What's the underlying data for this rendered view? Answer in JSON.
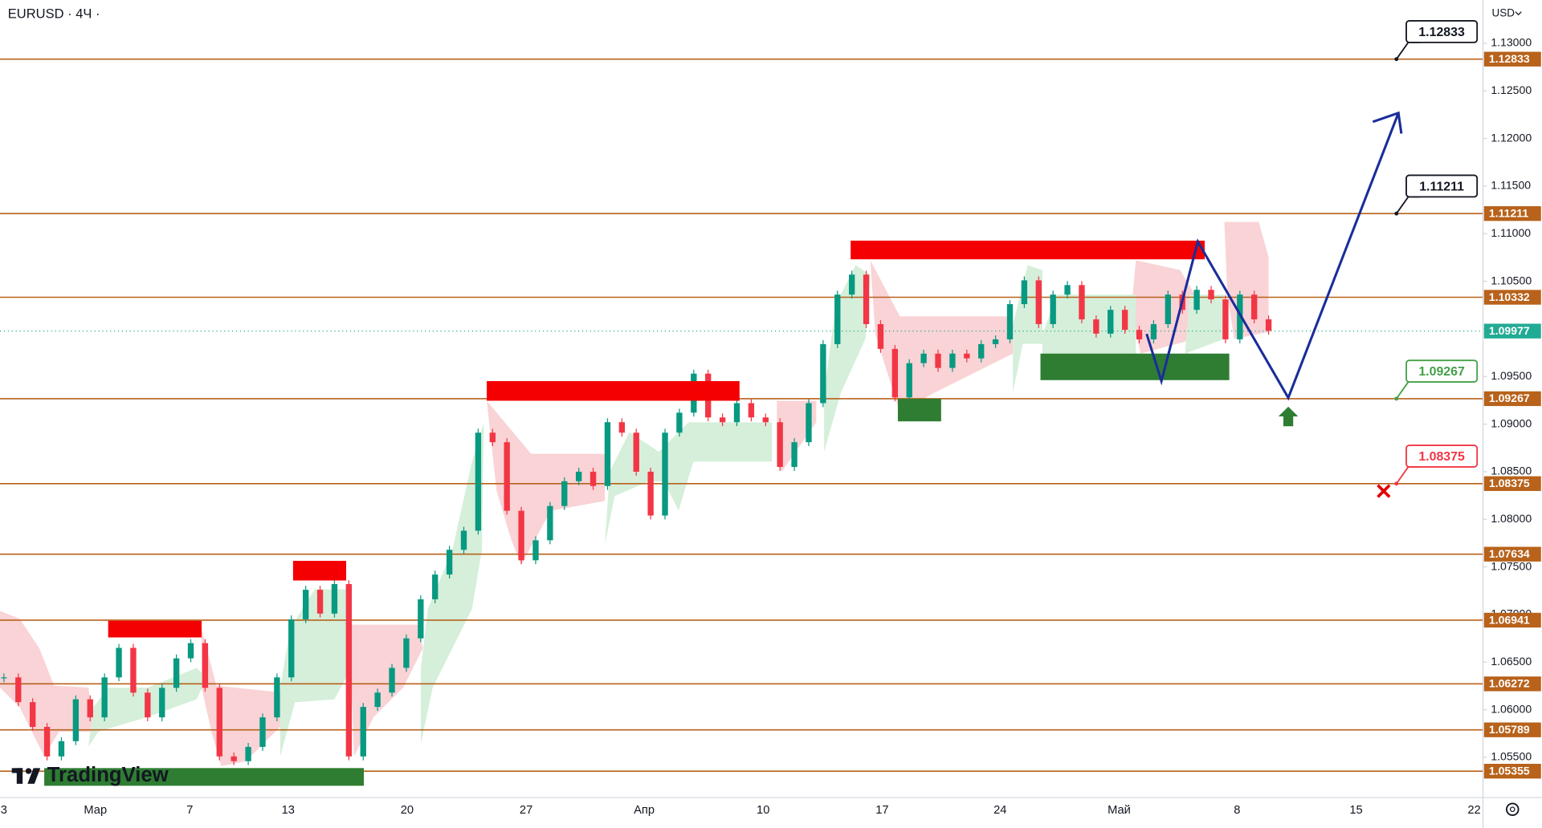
{
  "chart_data": {
    "type": "candlestick",
    "title": "EURUSD · 4Ч ·",
    "currency": "USD",
    "watermark": "TradingView",
    "x_labels": [
      "3",
      "Мар",
      "7",
      "13",
      "20",
      "27",
      "Апр",
      "10",
      "17",
      "24",
      "Май",
      "8",
      "15",
      "22"
    ],
    "values": [
      1.0634,
      1.0608,
      1.0582,
      1.0551,
      1.0567,
      1.0611,
      1.0592,
      1.0634,
      1.0665,
      1.0618,
      1.0592,
      1.0623,
      1.0654,
      1.067,
      1.0623,
      1.0551,
      1.0546,
      1.0561,
      1.0592,
      1.0634,
      1.0695,
      1.0726,
      1.0701,
      1.0732,
      1.0551,
      1.0603,
      1.0618,
      1.0644,
      1.0675,
      1.0716,
      1.0742,
      1.0768,
      1.0788,
      1.0891,
      1.0881,
      1.0809,
      1.0757,
      1.0778,
      1.0814,
      1.084,
      1.085,
      1.0835,
      1.0902,
      1.0891,
      1.085,
      1.0804,
      1.0891,
      1.0912,
      1.0953,
      1.0907,
      1.0902,
      1.0922,
      1.0907,
      1.0902,
      1.0855,
      1.0881,
      1.0922,
      1.0984,
      1.1036,
      1.1057,
      1.1005,
      1.0979,
      1.0928,
      1.0964,
      1.0974,
      1.0959,
      1.0974,
      1.0969,
      1.0984,
      1.0989,
      1.1026,
      1.1051,
      1.1005,
      1.1036,
      1.1046,
      1.101,
      1.0995,
      1.102,
      1.0999,
      1.0989,
      1.1005,
      1.1036,
      1.102,
      1.1041,
      1.1031,
      1.0989,
      1.1036,
      1.101,
      1.0998
    ],
    "up_color": "#089981",
    "down_color": "#f23645",
    "ylim": [
      1.05078,
      1.13454
    ],
    "yticks": [
      {
        "value": 1.13,
        "label": "1.13000"
      },
      {
        "value": 1.125,
        "label": "1.12500"
      },
      {
        "value": 1.12,
        "label": "1.12000"
      },
      {
        "value": 1.115,
        "label": "1.11500"
      },
      {
        "value": 1.11,
        "label": "1.11000"
      },
      {
        "value": 1.105,
        "label": "1.10500"
      },
      {
        "value": 1.1,
        "label": "1.10000"
      },
      {
        "value": 1.095,
        "label": "1.09500"
      },
      {
        "value": 1.09,
        "label": "1.09000"
      },
      {
        "value": 1.085,
        "label": "1.08500"
      },
      {
        "value": 1.08,
        "label": "1.08000"
      },
      {
        "value": 1.075,
        "label": "1.07500"
      },
      {
        "value": 1.07,
        "label": "1.07000"
      },
      {
        "value": 1.065,
        "label": "1.06500"
      },
      {
        "value": 1.06,
        "label": "1.06000"
      },
      {
        "value": 1.055,
        "label": "1.05500"
      }
    ],
    "levels": [
      1.12833,
      1.11211,
      1.10332,
      1.09267,
      1.08375,
      1.07634,
      1.06941,
      1.06272,
      1.05789,
      1.05355
    ],
    "level_color": "#b8621b",
    "last_price": 1.09977,
    "last_price_color": "#22ab94",
    "callouts": [
      {
        "value": 1.12833,
        "color": "#131722"
      },
      {
        "value": 1.11211,
        "color": "#131722"
      },
      {
        "value": 1.09267,
        "color": "#43a047"
      },
      {
        "value": 1.08375,
        "color": "#f23645"
      }
    ]
  }
}
